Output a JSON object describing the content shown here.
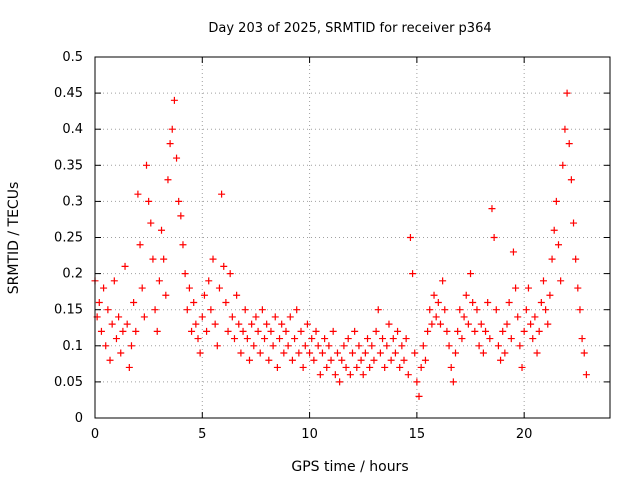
{
  "chart_data": {
    "type": "scatter",
    "title": "Day 203 of 2025, SRMTID for receiver p364",
    "xlabel": "GPS time / hours",
    "ylabel": "SRMTID / TECUs",
    "xlim": [
      0,
      24
    ],
    "ylim": [
      0,
      0.5
    ],
    "x_ticks": [
      0,
      5,
      10,
      15,
      20
    ],
    "x_tick_labels": [
      "0",
      "5",
      "10",
      "15",
      "20"
    ],
    "y_ticks": [
      0,
      0.05,
      0.1,
      0.15,
      0.2,
      0.25,
      0.3,
      0.35,
      0.4,
      0.45,
      0.5
    ],
    "y_tick_labels": [
      "0",
      "0.05",
      "0.1",
      "0.15",
      "0.2",
      "0.25",
      "0.3",
      "0.35",
      "0.4",
      "0.45",
      "0.5"
    ],
    "grid": true,
    "marker": "+",
    "color": "#ff0000",
    "series": [
      {
        "name": "SRMTID",
        "points": [
          [
            0.0,
            0.19
          ],
          [
            0.1,
            0.14
          ],
          [
            0.2,
            0.16
          ],
          [
            0.3,
            0.12
          ],
          [
            0.4,
            0.18
          ],
          [
            0.5,
            0.1
          ],
          [
            0.6,
            0.15
          ],
          [
            0.7,
            0.08
          ],
          [
            0.8,
            0.13
          ],
          [
            0.9,
            0.19
          ],
          [
            1.0,
            0.11
          ],
          [
            1.1,
            0.14
          ],
          [
            1.2,
            0.09
          ],
          [
            1.3,
            0.12
          ],
          [
            1.4,
            0.21
          ],
          [
            1.5,
            0.13
          ],
          [
            1.6,
            0.07
          ],
          [
            1.7,
            0.1
          ],
          [
            1.8,
            0.16
          ],
          [
            1.9,
            0.12
          ],
          [
            2.0,
            0.31
          ],
          [
            2.1,
            0.24
          ],
          [
            2.2,
            0.18
          ],
          [
            2.3,
            0.14
          ],
          [
            2.4,
            0.35
          ],
          [
            2.5,
            0.3
          ],
          [
            2.6,
            0.27
          ],
          [
            2.7,
            0.22
          ],
          [
            2.8,
            0.15
          ],
          [
            2.9,
            0.12
          ],
          [
            3.0,
            0.19
          ],
          [
            3.1,
            0.26
          ],
          [
            3.2,
            0.22
          ],
          [
            3.3,
            0.17
          ],
          [
            3.4,
            0.33
          ],
          [
            3.5,
            0.38
          ],
          [
            3.6,
            0.4
          ],
          [
            3.7,
            0.44
          ],
          [
            3.8,
            0.36
          ],
          [
            3.9,
            0.3
          ],
          [
            4.0,
            0.28
          ],
          [
            4.1,
            0.24
          ],
          [
            4.2,
            0.2
          ],
          [
            4.3,
            0.15
          ],
          [
            4.4,
            0.18
          ],
          [
            4.5,
            0.12
          ],
          [
            4.6,
            0.16
          ],
          [
            4.7,
            0.13
          ],
          [
            4.8,
            0.11
          ],
          [
            4.9,
            0.09
          ],
          [
            5.0,
            0.14
          ],
          [
            5.1,
            0.17
          ],
          [
            5.2,
            0.12
          ],
          [
            5.3,
            0.19
          ],
          [
            5.4,
            0.15
          ],
          [
            5.5,
            0.22
          ],
          [
            5.6,
            0.13
          ],
          [
            5.7,
            0.1
          ],
          [
            5.8,
            0.18
          ],
          [
            5.9,
            0.31
          ],
          [
            6.0,
            0.21
          ],
          [
            6.1,
            0.16
          ],
          [
            6.2,
            0.12
          ],
          [
            6.3,
            0.2
          ],
          [
            6.4,
            0.14
          ],
          [
            6.5,
            0.11
          ],
          [
            6.6,
            0.17
          ],
          [
            6.7,
            0.13
          ],
          [
            6.8,
            0.09
          ],
          [
            6.9,
            0.12
          ],
          [
            7.0,
            0.15
          ],
          [
            7.1,
            0.11
          ],
          [
            7.2,
            0.08
          ],
          [
            7.3,
            0.13
          ],
          [
            7.4,
            0.1
          ],
          [
            7.5,
            0.14
          ],
          [
            7.6,
            0.12
          ],
          [
            7.7,
            0.09
          ],
          [
            7.8,
            0.15
          ],
          [
            7.9,
            0.11
          ],
          [
            8.0,
            0.13
          ],
          [
            8.1,
            0.08
          ],
          [
            8.2,
            0.12
          ],
          [
            8.3,
            0.1
          ],
          [
            8.4,
            0.14
          ],
          [
            8.5,
            0.07
          ],
          [
            8.6,
            0.11
          ],
          [
            8.7,
            0.13
          ],
          [
            8.8,
            0.09
          ],
          [
            8.9,
            0.12
          ],
          [
            9.0,
            0.1
          ],
          [
            9.1,
            0.14
          ],
          [
            9.2,
            0.08
          ],
          [
            9.3,
            0.11
          ],
          [
            9.4,
            0.15
          ],
          [
            9.5,
            0.09
          ],
          [
            9.6,
            0.12
          ],
          [
            9.7,
            0.07
          ],
          [
            9.8,
            0.1
          ],
          [
            9.9,
            0.13
          ],
          [
            10.0,
            0.09
          ],
          [
            10.1,
            0.11
          ],
          [
            10.2,
            0.08
          ],
          [
            10.3,
            0.12
          ],
          [
            10.4,
            0.1
          ],
          [
            10.5,
            0.06
          ],
          [
            10.6,
            0.09
          ],
          [
            10.7,
            0.11
          ],
          [
            10.8,
            0.07
          ],
          [
            10.9,
            0.1
          ],
          [
            11.0,
            0.08
          ],
          [
            11.1,
            0.12
          ],
          [
            11.2,
            0.06
          ],
          [
            11.3,
            0.09
          ],
          [
            11.4,
            0.05
          ],
          [
            11.5,
            0.08
          ],
          [
            11.6,
            0.1
          ],
          [
            11.7,
            0.07
          ],
          [
            11.8,
            0.11
          ],
          [
            11.9,
            0.06
          ],
          [
            12.0,
            0.09
          ],
          [
            12.1,
            0.12
          ],
          [
            12.2,
            0.07
          ],
          [
            12.3,
            0.1
          ],
          [
            12.4,
            0.08
          ],
          [
            12.5,
            0.06
          ],
          [
            12.6,
            0.09
          ],
          [
            12.7,
            0.11
          ],
          [
            12.8,
            0.07
          ],
          [
            12.9,
            0.1
          ],
          [
            13.0,
            0.08
          ],
          [
            13.1,
            0.12
          ],
          [
            13.2,
            0.15
          ],
          [
            13.3,
            0.09
          ],
          [
            13.4,
            0.11
          ],
          [
            13.5,
            0.07
          ],
          [
            13.6,
            0.1
          ],
          [
            13.7,
            0.13
          ],
          [
            13.8,
            0.08
          ],
          [
            13.9,
            0.11
          ],
          [
            14.0,
            0.09
          ],
          [
            14.1,
            0.12
          ],
          [
            14.2,
            0.07
          ],
          [
            14.3,
            0.1
          ],
          [
            14.4,
            0.08
          ],
          [
            14.5,
            0.11
          ],
          [
            14.6,
            0.06
          ],
          [
            14.7,
            0.25
          ],
          [
            14.8,
            0.2
          ],
          [
            14.9,
            0.09
          ],
          [
            15.0,
            0.05
          ],
          [
            15.1,
            0.03
          ],
          [
            15.2,
            0.07
          ],
          [
            15.3,
            0.1
          ],
          [
            15.4,
            0.08
          ],
          [
            15.5,
            0.12
          ],
          [
            15.6,
            0.15
          ],
          [
            15.7,
            0.13
          ],
          [
            15.8,
            0.17
          ],
          [
            15.9,
            0.14
          ],
          [
            16.0,
            0.16
          ],
          [
            16.1,
            0.13
          ],
          [
            16.2,
            0.19
          ],
          [
            16.3,
            0.15
          ],
          [
            16.4,
            0.12
          ],
          [
            16.5,
            0.1
          ],
          [
            16.6,
            0.07
          ],
          [
            16.7,
            0.05
          ],
          [
            16.8,
            0.09
          ],
          [
            16.9,
            0.12
          ],
          [
            17.0,
            0.15
          ],
          [
            17.1,
            0.11
          ],
          [
            17.2,
            0.14
          ],
          [
            17.3,
            0.17
          ],
          [
            17.4,
            0.13
          ],
          [
            17.5,
            0.2
          ],
          [
            17.6,
            0.16
          ],
          [
            17.7,
            0.12
          ],
          [
            17.8,
            0.15
          ],
          [
            17.9,
            0.1
          ],
          [
            18.0,
            0.13
          ],
          [
            18.1,
            0.09
          ],
          [
            18.2,
            0.12
          ],
          [
            18.3,
            0.16
          ],
          [
            18.4,
            0.11
          ],
          [
            18.5,
            0.29
          ],
          [
            18.6,
            0.25
          ],
          [
            18.7,
            0.15
          ],
          [
            18.8,
            0.1
          ],
          [
            18.9,
            0.08
          ],
          [
            19.0,
            0.12
          ],
          [
            19.1,
            0.09
          ],
          [
            19.2,
            0.13
          ],
          [
            19.3,
            0.16
          ],
          [
            19.4,
            0.11
          ],
          [
            19.5,
            0.23
          ],
          [
            19.6,
            0.18
          ],
          [
            19.7,
            0.14
          ],
          [
            19.8,
            0.1
          ],
          [
            19.9,
            0.07
          ],
          [
            20.0,
            0.12
          ],
          [
            20.1,
            0.15
          ],
          [
            20.2,
            0.18
          ],
          [
            20.3,
            0.13
          ],
          [
            20.4,
            0.11
          ],
          [
            20.5,
            0.14
          ],
          [
            20.6,
            0.09
          ],
          [
            20.7,
            0.12
          ],
          [
            20.8,
            0.16
          ],
          [
            20.9,
            0.19
          ],
          [
            21.0,
            0.15
          ],
          [
            21.1,
            0.13
          ],
          [
            21.2,
            0.17
          ],
          [
            21.3,
            0.22
          ],
          [
            21.4,
            0.26
          ],
          [
            21.5,
            0.3
          ],
          [
            21.6,
            0.24
          ],
          [
            21.7,
            0.19
          ],
          [
            21.8,
            0.35
          ],
          [
            21.9,
            0.4
          ],
          [
            22.0,
            0.45
          ],
          [
            22.1,
            0.38
          ],
          [
            22.2,
            0.33
          ],
          [
            22.3,
            0.27
          ],
          [
            22.4,
            0.22
          ],
          [
            22.5,
            0.18
          ],
          [
            22.6,
            0.15
          ],
          [
            22.7,
            0.11
          ],
          [
            22.8,
            0.09
          ],
          [
            22.9,
            0.06
          ]
        ]
      }
    ]
  }
}
